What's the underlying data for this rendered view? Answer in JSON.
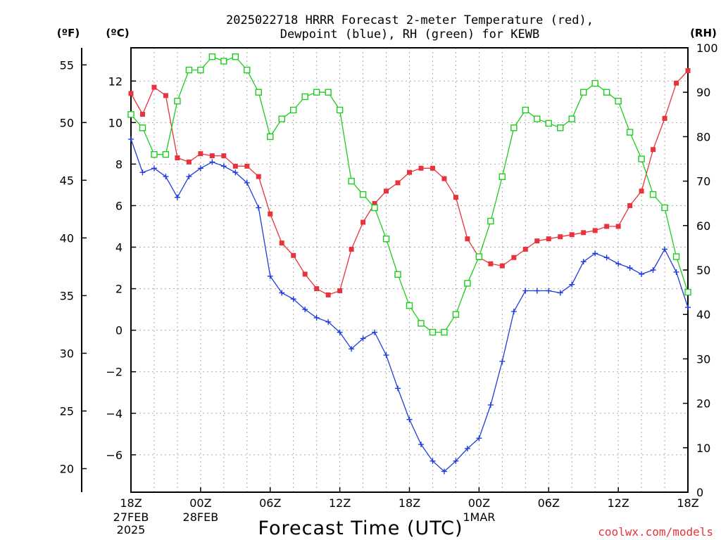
{
  "title_line1": "2025022718 HRRR Forecast 2-meter Temperature (red),",
  "title_line2": "Dewpoint (blue), RH (green) for KEWB",
  "credit": "coolwx.com/models",
  "chart_data": {
    "type": "line",
    "xlabel": "Forecast Time (UTC)",
    "x_unit": "forecast hour from 2025-02-27 18Z",
    "x": [
      0,
      1,
      2,
      3,
      4,
      5,
      6,
      7,
      8,
      9,
      10,
      11,
      12,
      13,
      14,
      15,
      16,
      17,
      18,
      19,
      20,
      21,
      22,
      23,
      24,
      25,
      26,
      27,
      28,
      29,
      30,
      31,
      32,
      33,
      34,
      35,
      36,
      37,
      38,
      39,
      40,
      41,
      42,
      43,
      44,
      45,
      46,
      47,
      48
    ],
    "xlim": [
      0,
      48
    ],
    "x_ticks": [
      {
        "x": 0,
        "label": "18Z"
      },
      {
        "x": 6,
        "label": "00Z"
      },
      {
        "x": 12,
        "label": "06Z"
      },
      {
        "x": 18,
        "label": "12Z"
      },
      {
        "x": 24,
        "label": "18Z"
      },
      {
        "x": 30,
        "label": "00Z"
      },
      {
        "x": 36,
        "label": "06Z"
      },
      {
        "x": 42,
        "label": "12Z"
      },
      {
        "x": 48,
        "label": "18Z"
      }
    ],
    "date_labels": [
      {
        "x": 0,
        "lines": [
          "27FEB",
          "2025"
        ]
      },
      {
        "x": 6,
        "lines": [
          "28FEB"
        ]
      },
      {
        "x": 30,
        "lines": [
          "1MAR"
        ]
      }
    ],
    "axes": {
      "celsius": {
        "label": "(ºC)",
        "ylim": [
          -7.8,
          13.6
        ],
        "ticks": [
          -6,
          -4,
          -2,
          0,
          2,
          4,
          6,
          8,
          10,
          12
        ]
      },
      "fahrenheit": {
        "label": "(ºF)",
        "ylim": [
          17.96,
          56.48
        ],
        "ticks": [
          20,
          25,
          30,
          35,
          40,
          45,
          50,
          55
        ]
      },
      "rh": {
        "label": "(RH)",
        "ylim": [
          0,
          100
        ],
        "ticks": [
          0,
          10,
          20,
          30,
          40,
          50,
          60,
          70,
          80,
          90,
          100
        ]
      }
    },
    "grid": true,
    "series": [
      {
        "name": "Temperature",
        "color": "#e8323c",
        "axis": "celsius",
        "marker": "filled-square",
        "values": [
          11.4,
          10.4,
          11.7,
          11.3,
          8.3,
          8.1,
          8.5,
          8.4,
          8.4,
          7.9,
          7.9,
          7.4,
          5.6,
          4.2,
          3.6,
          2.7,
          2.0,
          1.7,
          1.9,
          3.9,
          5.2,
          6.1,
          6.7,
          7.1,
          7.6,
          7.8,
          7.8,
          7.3,
          6.4,
          4.4,
          3.5,
          3.2,
          3.1,
          3.5,
          3.9,
          4.3,
          4.4,
          4.5,
          4.6,
          4.7,
          4.8,
          5.0,
          5.0,
          6.0,
          6.7,
          8.7,
          10.2,
          11.9,
          12.5
        ]
      },
      {
        "name": "Dewpoint",
        "color": "#1e3cdc",
        "axis": "celsius",
        "marker": "plus",
        "values": [
          9.2,
          7.6,
          7.8,
          7.4,
          6.4,
          7.4,
          7.8,
          8.1,
          7.9,
          7.6,
          7.1,
          5.9,
          2.6,
          1.8,
          1.5,
          1.0,
          0.6,
          0.4,
          -0.1,
          -0.9,
          -0.4,
          -0.1,
          -1.2,
          -2.8,
          -4.3,
          -5.5,
          -6.3,
          -6.8,
          -6.3,
          -5.7,
          -5.2,
          -3.6,
          -1.5,
          0.9,
          1.9,
          1.9,
          1.9,
          1.8,
          2.2,
          3.3,
          3.7,
          3.5,
          3.2,
          3.0,
          2.7,
          2.9,
          3.9,
          2.8,
          1.1
        ]
      },
      {
        "name": "RH",
        "color": "#1ecc1e",
        "axis": "rh",
        "marker": "open-square",
        "values": [
          85,
          82,
          76,
          76,
          88,
          95,
          95,
          98,
          97,
          98,
          95,
          90,
          80,
          84,
          86,
          89,
          90,
          90,
          86,
          70,
          67,
          64,
          57,
          49,
          42,
          38,
          36,
          36,
          40,
          47,
          53,
          61,
          71,
          82,
          86,
          84,
          83,
          82,
          84,
          90,
          92,
          90,
          88,
          81,
          75,
          67,
          64,
          53,
          45
        ]
      }
    ]
  }
}
